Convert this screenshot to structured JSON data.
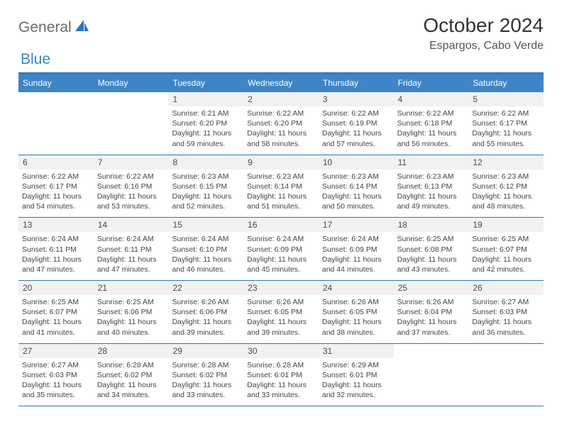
{
  "logo": {
    "part1": "General",
    "part2": "Blue"
  },
  "title": "October 2024",
  "location": "Espargos, Cabo Verde",
  "colors": {
    "header_bg": "#3d85c6",
    "header_text": "#ffffff",
    "border": "#2f75b5",
    "daynum_bg": "#f1f1f1",
    "body_text": "#444444",
    "title_text": "#333333"
  },
  "dayNames": [
    "Sunday",
    "Monday",
    "Tuesday",
    "Wednesday",
    "Thursday",
    "Friday",
    "Saturday"
  ],
  "weeks": [
    [
      {
        "n": "",
        "sr": "",
        "ss": "",
        "dl": ""
      },
      {
        "n": "",
        "sr": "",
        "ss": "",
        "dl": ""
      },
      {
        "n": "1",
        "sr": "6:21 AM",
        "ss": "6:20 PM",
        "dl": "11 hours and 59 minutes."
      },
      {
        "n": "2",
        "sr": "6:22 AM",
        "ss": "6:20 PM",
        "dl": "11 hours and 58 minutes."
      },
      {
        "n": "3",
        "sr": "6:22 AM",
        "ss": "6:19 PM",
        "dl": "11 hours and 57 minutes."
      },
      {
        "n": "4",
        "sr": "6:22 AM",
        "ss": "6:18 PM",
        "dl": "11 hours and 56 minutes."
      },
      {
        "n": "5",
        "sr": "6:22 AM",
        "ss": "6:17 PM",
        "dl": "11 hours and 55 minutes."
      }
    ],
    [
      {
        "n": "6",
        "sr": "6:22 AM",
        "ss": "6:17 PM",
        "dl": "11 hours and 54 minutes."
      },
      {
        "n": "7",
        "sr": "6:22 AM",
        "ss": "6:16 PM",
        "dl": "11 hours and 53 minutes."
      },
      {
        "n": "8",
        "sr": "6:23 AM",
        "ss": "6:15 PM",
        "dl": "11 hours and 52 minutes."
      },
      {
        "n": "9",
        "sr": "6:23 AM",
        "ss": "6:14 PM",
        "dl": "11 hours and 51 minutes."
      },
      {
        "n": "10",
        "sr": "6:23 AM",
        "ss": "6:14 PM",
        "dl": "11 hours and 50 minutes."
      },
      {
        "n": "11",
        "sr": "6:23 AM",
        "ss": "6:13 PM",
        "dl": "11 hours and 49 minutes."
      },
      {
        "n": "12",
        "sr": "6:23 AM",
        "ss": "6:12 PM",
        "dl": "11 hours and 48 minutes."
      }
    ],
    [
      {
        "n": "13",
        "sr": "6:24 AM",
        "ss": "6:11 PM",
        "dl": "11 hours and 47 minutes."
      },
      {
        "n": "14",
        "sr": "6:24 AM",
        "ss": "6:11 PM",
        "dl": "11 hours and 47 minutes."
      },
      {
        "n": "15",
        "sr": "6:24 AM",
        "ss": "6:10 PM",
        "dl": "11 hours and 46 minutes."
      },
      {
        "n": "16",
        "sr": "6:24 AM",
        "ss": "6:09 PM",
        "dl": "11 hours and 45 minutes."
      },
      {
        "n": "17",
        "sr": "6:24 AM",
        "ss": "6:09 PM",
        "dl": "11 hours and 44 minutes."
      },
      {
        "n": "18",
        "sr": "6:25 AM",
        "ss": "6:08 PM",
        "dl": "11 hours and 43 minutes."
      },
      {
        "n": "19",
        "sr": "6:25 AM",
        "ss": "6:07 PM",
        "dl": "11 hours and 42 minutes."
      }
    ],
    [
      {
        "n": "20",
        "sr": "6:25 AM",
        "ss": "6:07 PM",
        "dl": "11 hours and 41 minutes."
      },
      {
        "n": "21",
        "sr": "6:25 AM",
        "ss": "6:06 PM",
        "dl": "11 hours and 40 minutes."
      },
      {
        "n": "22",
        "sr": "6:26 AM",
        "ss": "6:06 PM",
        "dl": "11 hours and 39 minutes."
      },
      {
        "n": "23",
        "sr": "6:26 AM",
        "ss": "6:05 PM",
        "dl": "11 hours and 39 minutes."
      },
      {
        "n": "24",
        "sr": "6:26 AM",
        "ss": "6:05 PM",
        "dl": "11 hours and 38 minutes."
      },
      {
        "n": "25",
        "sr": "6:26 AM",
        "ss": "6:04 PM",
        "dl": "11 hours and 37 minutes."
      },
      {
        "n": "26",
        "sr": "6:27 AM",
        "ss": "6:03 PM",
        "dl": "11 hours and 36 minutes."
      }
    ],
    [
      {
        "n": "27",
        "sr": "6:27 AM",
        "ss": "6:03 PM",
        "dl": "11 hours and 35 minutes."
      },
      {
        "n": "28",
        "sr": "6:28 AM",
        "ss": "6:02 PM",
        "dl": "11 hours and 34 minutes."
      },
      {
        "n": "29",
        "sr": "6:28 AM",
        "ss": "6:02 PM",
        "dl": "11 hours and 33 minutes."
      },
      {
        "n": "30",
        "sr": "6:28 AM",
        "ss": "6:01 PM",
        "dl": "11 hours and 33 minutes."
      },
      {
        "n": "31",
        "sr": "6:29 AM",
        "ss": "6:01 PM",
        "dl": "11 hours and 32 minutes."
      },
      {
        "n": "",
        "sr": "",
        "ss": "",
        "dl": ""
      },
      {
        "n": "",
        "sr": "",
        "ss": "",
        "dl": ""
      }
    ]
  ],
  "labels": {
    "sunrise": "Sunrise:",
    "sunset": "Sunset:",
    "daylight": "Daylight:"
  }
}
